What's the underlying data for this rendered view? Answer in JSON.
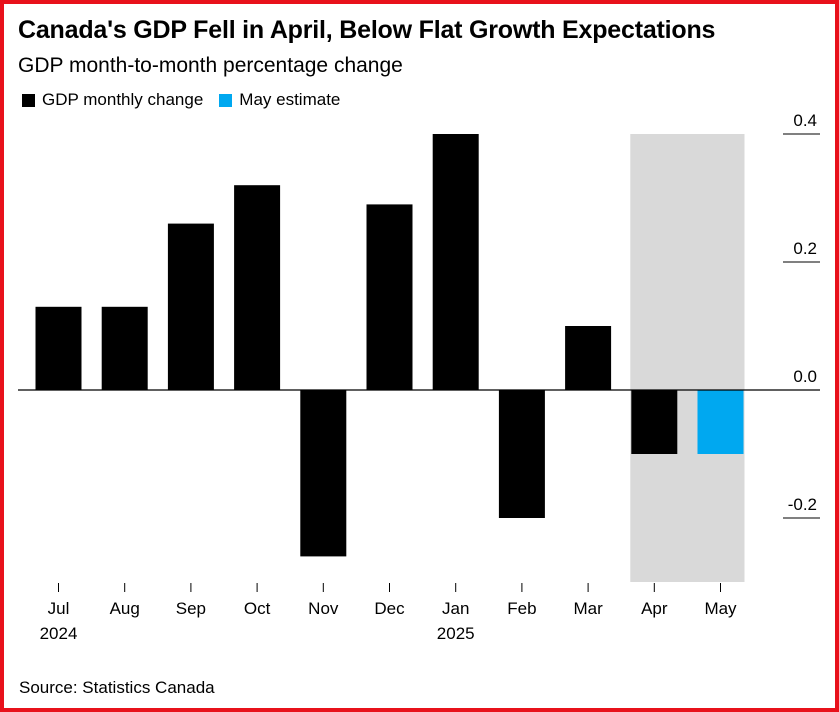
{
  "colors": {
    "frame": "#e8111b",
    "actual": "#000000",
    "estimate": "#00a8f0",
    "highlight": "#d9d9d9"
  },
  "title": "Canada's GDP Fell in April, Below Flat Growth Expectations",
  "subtitle": "GDP month-to-month percentage change",
  "source": "Source: Statistics Canada",
  "legend": [
    {
      "label": "GDP monthly change",
      "color": "#000000"
    },
    {
      "label": "May estimate",
      "color": "#00a8f0"
    }
  ],
  "chart_data": {
    "type": "bar",
    "title": "Canada's GDP Fell in April, Below Flat Growth Expectations",
    "subtitle": "GDP month-to-month percentage change",
    "categories": [
      "Jul",
      "Aug",
      "Sep",
      "Oct",
      "Nov",
      "Dec",
      "Jan",
      "Feb",
      "Mar",
      "Apr",
      "May"
    ],
    "year_labels": {
      "Jul": "2024",
      "Jan": "2025"
    },
    "series": [
      {
        "name": "GDP monthly change",
        "color": "#000000",
        "values": [
          0.13,
          0.13,
          0.26,
          0.32,
          -0.26,
          0.29,
          0.4,
          -0.2,
          0.1,
          -0.1,
          null
        ]
      },
      {
        "name": "May estimate",
        "color": "#00a8f0",
        "values": [
          null,
          null,
          null,
          null,
          null,
          null,
          null,
          null,
          null,
          null,
          -0.1
        ]
      }
    ],
    "highlight_categories": [
      "Apr",
      "May"
    ],
    "yticks": [
      0.4,
      0.2,
      0.0,
      -0.2
    ],
    "ytick_labels": [
      "0.4",
      "0.2",
      "0.0",
      "-0.2"
    ],
    "ylim": [
      -0.3,
      0.4
    ],
    "y_axis_side": "right",
    "legend_position": "top-left",
    "grid": false
  }
}
